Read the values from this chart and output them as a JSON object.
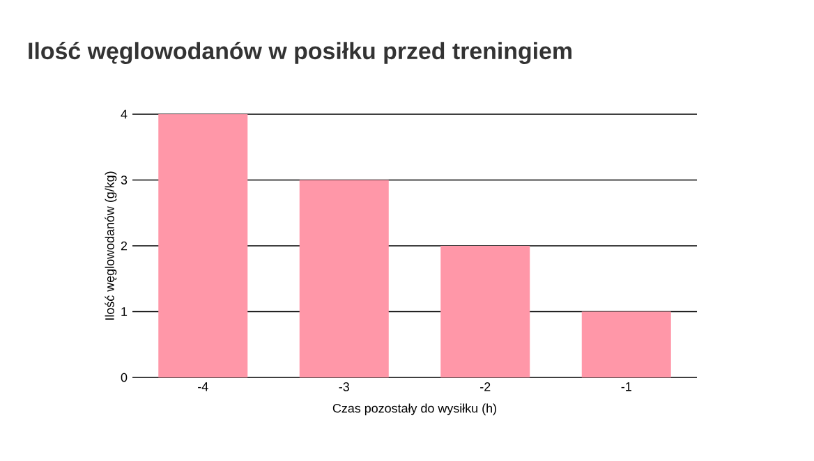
{
  "chart_data": {
    "type": "bar",
    "title": "Ilość węglowodanów w posiłku przed treningiem",
    "categories": [
      "-4",
      "-3",
      "-2",
      "-1"
    ],
    "values": [
      4,
      3,
      2,
      1
    ],
    "color": "#ff97a8",
    "xlabel": "Czas pozostały do wysiłku (h)",
    "ylabel": "Ilość węglowodanów (g/kg)",
    "ylim": [
      0,
      4
    ],
    "yticks": [
      0,
      1,
      2,
      3,
      4
    ],
    "grid": "y"
  }
}
